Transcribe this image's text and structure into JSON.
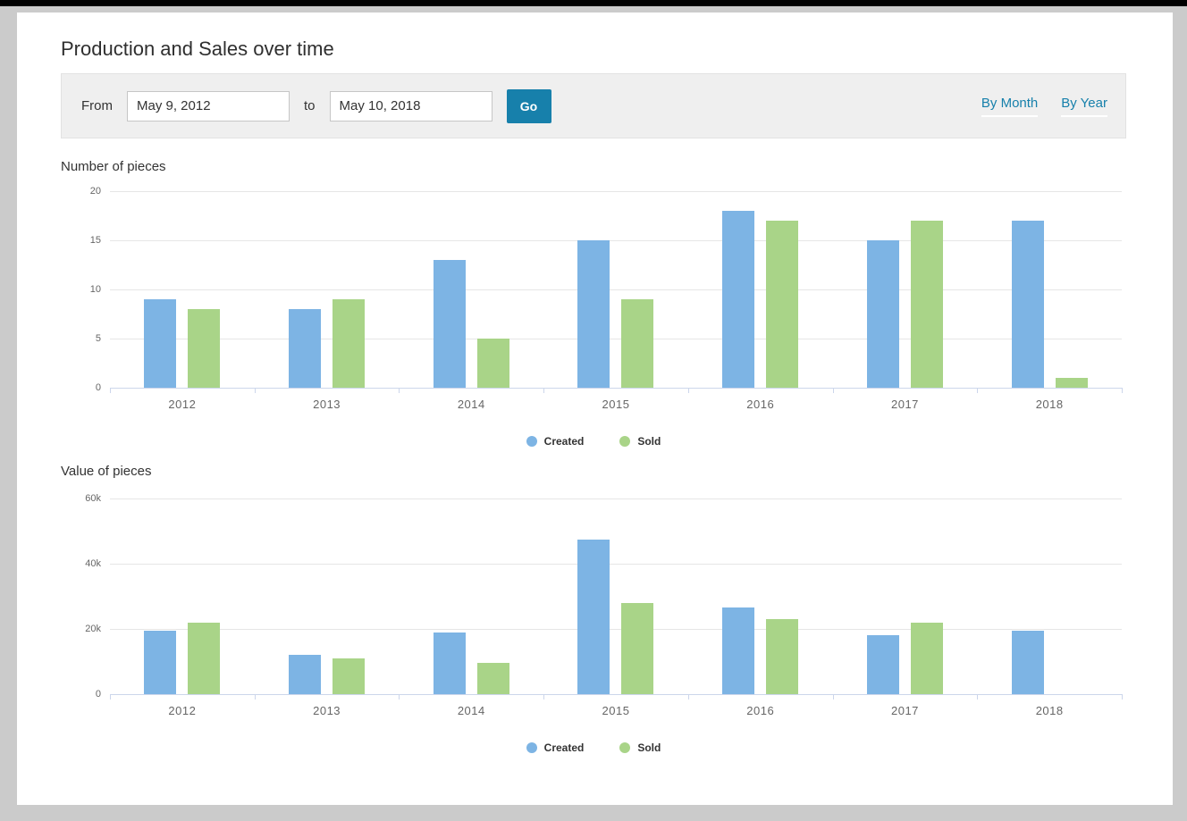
{
  "page": {
    "title": "Production and Sales over time"
  },
  "colors": {
    "created": "#7db4e4",
    "sold": "#a9d488",
    "accent": "#1780ab",
    "axis": "#ccd6eb",
    "gridline": "#e6e6e6",
    "filter_bar_bg": "#efefef",
    "frame_gray": "#cbcbcb",
    "top_strip": "#000000"
  },
  "filter": {
    "from_label": "From",
    "from_value": "May 9, 2012",
    "to_label": "to",
    "to_value": "May 10, 2018",
    "go_label": "Go",
    "links": [
      {
        "label": "By Month"
      },
      {
        "label": "By Year"
      }
    ]
  },
  "chart_data": [
    {
      "type": "bar",
      "title": "Number of pieces",
      "categories": [
        "2012",
        "2013",
        "2014",
        "2015",
        "2016",
        "2017",
        "2018"
      ],
      "series": [
        {
          "name": "Created",
          "color": "#7db4e4",
          "values": [
            9,
            8,
            13,
            15,
            18,
            15,
            17
          ]
        },
        {
          "name": "Sold",
          "color": "#a9d488",
          "values": [
            8,
            9,
            5,
            9,
            17,
            17,
            1
          ]
        }
      ],
      "ylim": [
        0,
        20
      ],
      "yticks": [
        {
          "value": 0,
          "label": "0"
        },
        {
          "value": 5,
          "label": "5"
        },
        {
          "value": 10,
          "label": "10"
        },
        {
          "value": 15,
          "label": "15"
        },
        {
          "value": 20,
          "label": "20"
        }
      ],
      "grid": true,
      "legend_position": "bottom"
    },
    {
      "type": "bar",
      "title": "Value of pieces",
      "categories": [
        "2012",
        "2013",
        "2014",
        "2015",
        "2016",
        "2017",
        "2018"
      ],
      "series": [
        {
          "name": "Created",
          "color": "#7db4e4",
          "values": [
            19500,
            12000,
            19000,
            47500,
            26500,
            18000,
            19500
          ]
        },
        {
          "name": "Sold",
          "color": "#a9d488",
          "values": [
            22000,
            11000,
            9500,
            28000,
            23000,
            22000,
            0
          ]
        }
      ],
      "ylim": [
        0,
        60000
      ],
      "yticks": [
        {
          "value": 0,
          "label": "0"
        },
        {
          "value": 20000,
          "label": "20k"
        },
        {
          "value": 40000,
          "label": "40k"
        },
        {
          "value": 60000,
          "label": "60k"
        }
      ],
      "grid": true,
      "legend_position": "bottom"
    }
  ]
}
